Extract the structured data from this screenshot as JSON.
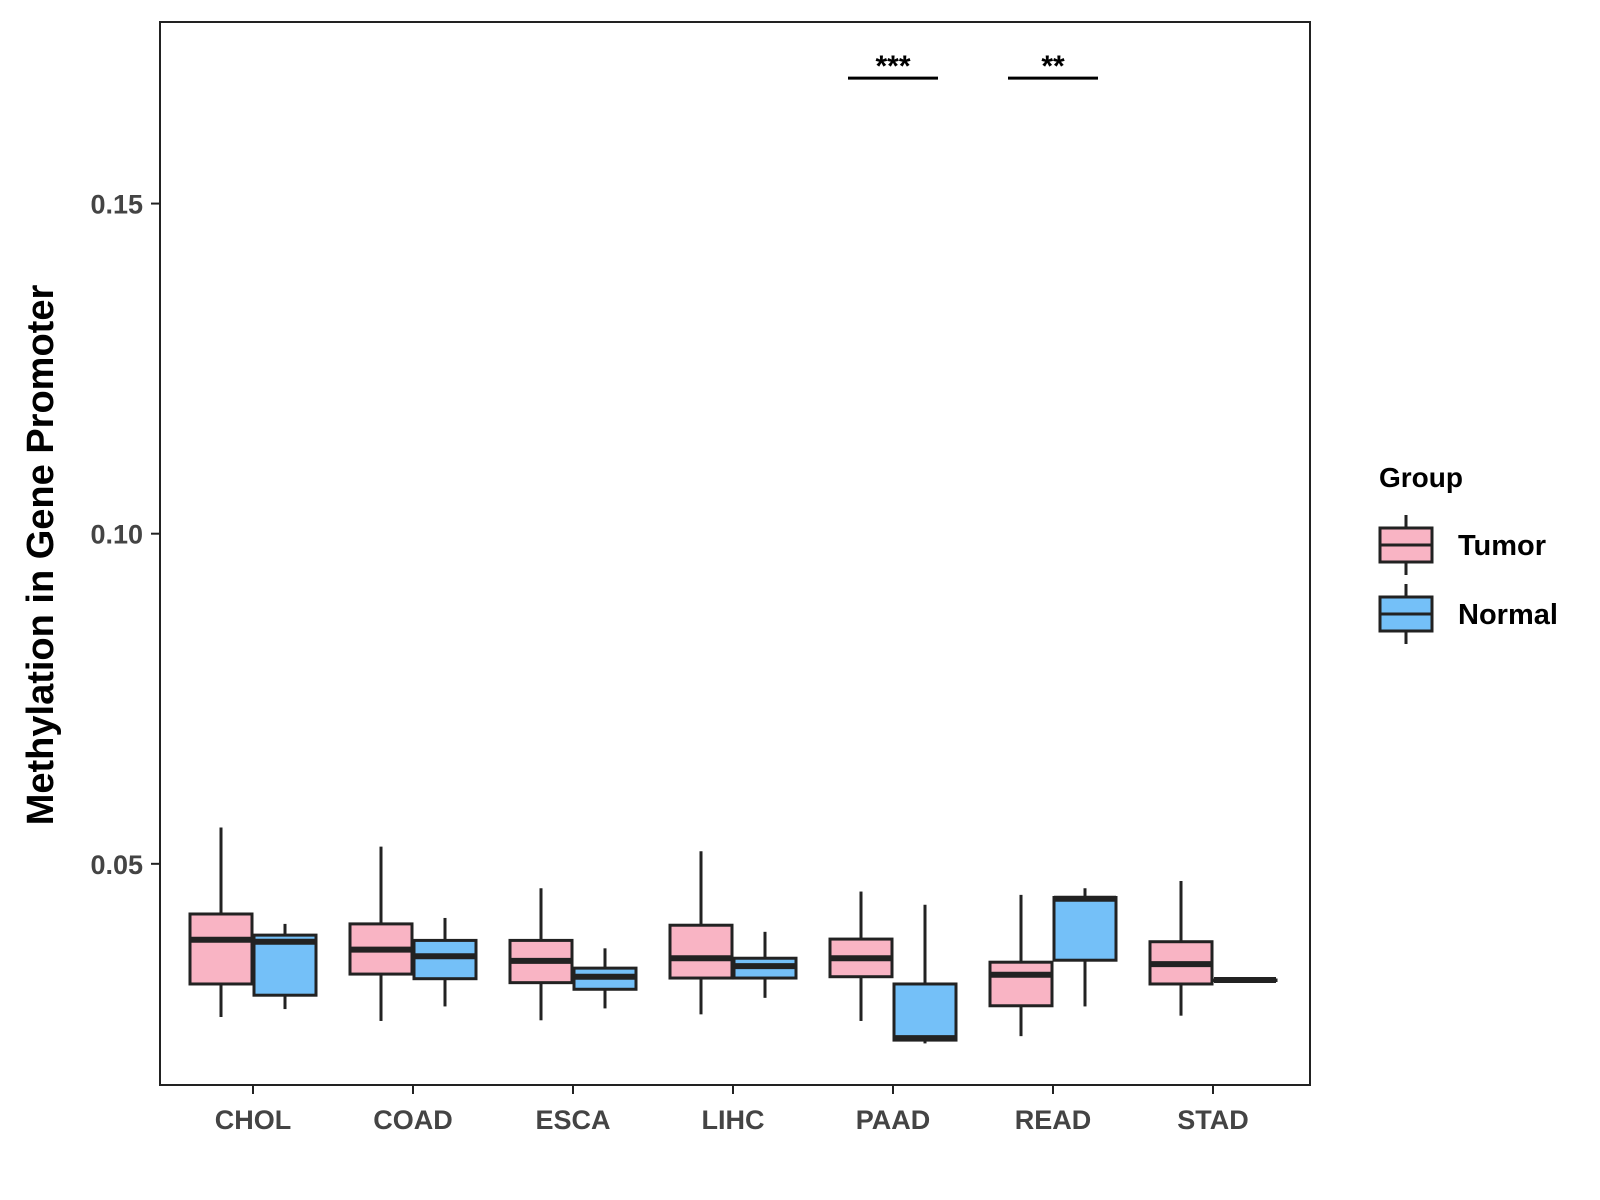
{
  "chart_data": {
    "type": "boxplot",
    "title": "",
    "xlabel": "",
    "ylabel": "Methylation in Gene Promoter",
    "ylim": [
      0.0165,
      0.1775
    ],
    "yticks": [
      0.05,
      0.1,
      0.15
    ],
    "ytick_labels": [
      "0.05",
      "0.10",
      "0.15"
    ],
    "categories": [
      "CHOL",
      "COAD",
      "ESCA",
      "LIHC",
      "PAAD",
      "READ",
      "STAD"
    ],
    "grid": false,
    "legend": {
      "title": "Group",
      "position": "right",
      "entries": [
        {
          "name": "Tumor",
          "color": "#F9B4C4"
        },
        {
          "name": "Normal",
          "color": "#74C0F8"
        }
      ]
    },
    "series": [
      {
        "name": "Tumor",
        "color": "#F9B4C4",
        "boxes": [
          {
            "category": "CHOL",
            "min": 0.0268,
            "q1": 0.0318,
            "median": 0.0385,
            "q3": 0.0424,
            "max": 0.0555
          },
          {
            "category": "COAD",
            "min": 0.0262,
            "q1": 0.0333,
            "median": 0.037,
            "q3": 0.0409,
            "max": 0.0526
          },
          {
            "category": "ESCA",
            "min": 0.0263,
            "q1": 0.032,
            "median": 0.0353,
            "q3": 0.0384,
            "max": 0.0463
          },
          {
            "category": "LIHC",
            "min": 0.0272,
            "q1": 0.0327,
            "median": 0.0357,
            "q3": 0.0407,
            "max": 0.0519
          },
          {
            "category": "PAAD",
            "min": 0.0262,
            "q1": 0.0329,
            "median": 0.0357,
            "q3": 0.0386,
            "max": 0.0458
          },
          {
            "category": "READ",
            "min": 0.0239,
            "q1": 0.0285,
            "median": 0.0332,
            "q3": 0.0351,
            "max": 0.0453
          },
          {
            "category": "STAD",
            "min": 0.027,
            "q1": 0.0318,
            "median": 0.0348,
            "q3": 0.0382,
            "max": 0.0474
          }
        ]
      },
      {
        "name": "Normal",
        "color": "#74C0F8",
        "boxes": [
          {
            "category": "CHOL",
            "min": 0.028,
            "q1": 0.0301,
            "median": 0.0382,
            "q3": 0.0392,
            "max": 0.0409
          },
          {
            "category": "COAD",
            "min": 0.0284,
            "q1": 0.0326,
            "median": 0.036,
            "q3": 0.0384,
            "max": 0.0418
          },
          {
            "category": "ESCA",
            "min": 0.0281,
            "q1": 0.031,
            "median": 0.0329,
            "q3": 0.0342,
            "max": 0.0372
          },
          {
            "category": "LIHC",
            "min": 0.0297,
            "q1": 0.0327,
            "median": 0.0345,
            "q3": 0.0357,
            "max": 0.0397
          },
          {
            "category": "PAAD",
            "min": 0.0228,
            "q1": 0.0233,
            "median": 0.0236,
            "q3": 0.0318,
            "max": 0.0438
          },
          {
            "category": "READ",
            "min": 0.0284,
            "q1": 0.0354,
            "median": 0.0447,
            "q3": 0.0449,
            "max": 0.0463
          },
          {
            "category": "STAD",
            "min": 0.0324,
            "q1": 0.0324,
            "median": 0.0324,
            "q3": 0.0324,
            "max": 0.0324
          }
        ]
      }
    ],
    "annotations": [
      {
        "category": "PAAD",
        "label": "***",
        "y": 0.169
      },
      {
        "category": "READ",
        "label": "**",
        "y": 0.169
      }
    ]
  }
}
